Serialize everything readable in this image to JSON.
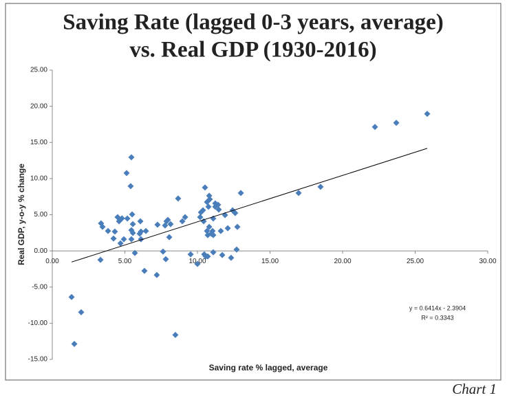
{
  "chart_data": {
    "type": "scatter",
    "title": "Saving Rate (lagged 0-3 years, average)",
    "subtitle": "vs. Real GDP (1930-2016)",
    "x_label": "Saving rate % lagged, average",
    "y_label": "Real GDP, y-o-y % change",
    "caption": "Chart 1",
    "color": "#4a7ebb",
    "xlim": [
      0,
      30
    ],
    "ylim": [
      -15,
      25
    ],
    "xticks": [
      {
        "value": 0,
        "label": "0.00"
      },
      {
        "value": 5,
        "label": "5.00"
      },
      {
        "value": 10,
        "label": "10.00"
      },
      {
        "value": 15,
        "label": "15.00"
      },
      {
        "value": 20,
        "label": "20.00"
      },
      {
        "value": 25,
        "label": "25.00"
      },
      {
        "value": 30,
        "label": "30.00"
      }
    ],
    "yticks": [
      {
        "value": -15,
        "label": "-15.00"
      },
      {
        "value": -10,
        "label": "-10.00"
      },
      {
        "value": -5,
        "label": "-5.00"
      },
      {
        "value": 0,
        "label": "0.00"
      },
      {
        "value": 5,
        "label": "5.00"
      },
      {
        "value": 10,
        "label": "10.00"
      },
      {
        "value": 15,
        "label": "15.00"
      },
      {
        "value": 20,
        "label": "20.00"
      },
      {
        "value": 25,
        "label": "25.00"
      }
    ],
    "x": [
      1.33,
      1.52,
      1.99,
      3.32,
      3.36,
      3.46,
      3.84,
      4.31,
      4.22,
      4.5,
      4.6,
      4.8,
      4.7,
      4.93,
      5.12,
      5.17,
      5.45,
      5.4,
      5.5,
      5.55,
      5.45,
      5.55,
      5.45,
      5.69,
      6.02,
      6.07,
      6.11,
      6.11,
      6.35,
      6.45,
      7.2,
      7.25,
      7.63,
      7.77,
      7.87,
      7.96,
      7.82,
      8.06,
      8.15,
      8.48,
      8.67,
      8.96,
      9.15,
      9.53,
      10.0,
      10.19,
      10.24,
      10.38,
      10.43,
      10.52,
      10.47,
      10.57,
      10.66,
      10.66,
      10.71,
      10.71,
      10.81,
      10.85,
      10.76,
      10.81,
      10.95,
      11.04,
      11.09,
      11.09,
      11.09,
      11.23,
      11.23,
      11.42,
      11.47,
      11.61,
      11.71,
      11.9,
      12.09,
      12.32,
      12.42,
      12.6,
      12.75,
      12.7,
      12.99,
      16.97,
      18.48,
      22.23,
      23.7,
      25.83
    ],
    "values": [
      -6.38,
      -12.86,
      -8.48,
      -1.24,
      3.81,
      3.33,
      2.76,
      2.67,
      1.71,
      4.67,
      4.1,
      4.5,
      1.05,
      1.62,
      10.76,
      4.48,
      12.95,
      8.95,
      5.05,
      3.71,
      2.86,
      2.48,
      1.62,
      -0.29,
      2.38,
      4.1,
      2.67,
      1.62,
      -2.76,
      2.76,
      -3.33,
      3.62,
      -0.1,
      3.52,
      4.1,
      4.29,
      -1.14,
      1.9,
      3.71,
      -11.62,
      7.24,
      4.1,
      4.67,
      -0.48,
      -1.81,
      4.67,
      5.33,
      5.62,
      4.1,
      8.76,
      -0.48,
      -0.76,
      6.76,
      2.76,
      2.19,
      -0.76,
      7.62,
      7.14,
      6.1,
      3.33,
      2.38,
      2.76,
      2.19,
      4.48,
      -0.19,
      6.57,
      6.1,
      6.38,
      5.71,
      2.76,
      -0.57,
      4.95,
      3.14,
      -0.95,
      5.62,
      5.24,
      3.33,
      0.19,
      8.0,
      8.0,
      8.86,
      17.14,
      17.71,
      18.95
    ],
    "trendline": {
      "x": [
        1.33,
        25.83
      ],
      "y": [
        -1.54,
        14.18
      ],
      "equation": "y = 0.6414x - 2.3904",
      "r2": "R² = 0.3343"
    }
  }
}
